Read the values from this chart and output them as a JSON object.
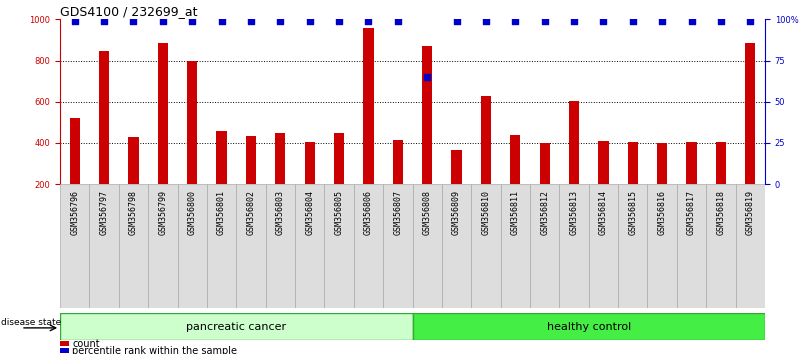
{
  "title": "GDS4100 / 232699_at",
  "samples": [
    "GSM356796",
    "GSM356797",
    "GSM356798",
    "GSM356799",
    "GSM356800",
    "GSM356801",
    "GSM356802",
    "GSM356803",
    "GSM356804",
    "GSM356805",
    "GSM356806",
    "GSM356807",
    "GSM356808",
    "GSM356809",
    "GSM356810",
    "GSM356811",
    "GSM356812",
    "GSM356813",
    "GSM356814",
    "GSM356815",
    "GSM356816",
    "GSM356817",
    "GSM356818",
    "GSM356819"
  ],
  "counts": [
    520,
    845,
    430,
    885,
    800,
    460,
    435,
    450,
    405,
    450,
    960,
    415,
    870,
    365,
    630,
    440,
    400,
    605,
    410,
    405,
    400,
    405,
    405,
    885
  ],
  "percentile": [
    99,
    99,
    99,
    99,
    99,
    99,
    99,
    99,
    99,
    99,
    99,
    99,
    65,
    99,
    99,
    99,
    99,
    99,
    99,
    99,
    99,
    99,
    99,
    99
  ],
  "bar_color": "#cc0000",
  "dot_color": "#0000cc",
  "grid_color": "#000000",
  "left_axis_color": "#cc0000",
  "right_axis_color": "#0000cc",
  "ylim_left": [
    200,
    1000
  ],
  "ylim_right": [
    0,
    100
  ],
  "yticks_left": [
    200,
    400,
    600,
    800,
    1000
  ],
  "yticks_right": [
    0,
    25,
    50,
    75,
    100
  ],
  "group1_label": "pancreatic cancer",
  "group2_label": "healthy control",
  "group1_count": 12,
  "group2_count": 12,
  "group1_color": "#ccffcc",
  "group2_color": "#44ee44",
  "legend_count_label": "count",
  "legend_pct_label": "percentile rank within the sample",
  "disease_state_label": "disease state",
  "title_fontsize": 9,
  "tick_fontsize": 6,
  "label_fontsize": 8,
  "cell_bg_color": "#dddddd",
  "cell_border_color": "#aaaaaa"
}
